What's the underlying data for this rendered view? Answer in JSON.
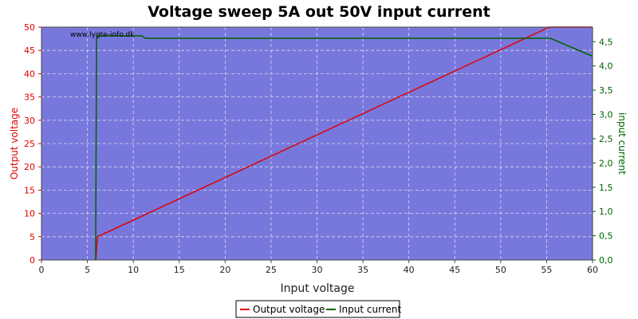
{
  "chart_data": {
    "type": "line",
    "title": "Voltage sweep 5A out 50V input current",
    "watermark": "www.lygte-info.dk",
    "xlabel": "Input voltage",
    "ylabel_left": "Output voltage",
    "ylabel_right": "input current",
    "xlim": [
      0,
      60
    ],
    "ylim_left": [
      0,
      50
    ],
    "ylim_right": [
      0,
      4.8
    ],
    "x_ticks": [
      "0",
      "5",
      "10",
      "15",
      "20",
      "25",
      "30",
      "35",
      "40",
      "45",
      "50",
      "55",
      "60"
    ],
    "y_left_ticks": [
      "0",
      "5",
      "10",
      "15",
      "20",
      "25",
      "30",
      "35",
      "40",
      "45",
      "50"
    ],
    "y_right_ticks": [
      "0,0",
      "0,5",
      "1,0",
      "1,5",
      "2,0",
      "2,5",
      "3,0",
      "3,5",
      "4,0",
      "4,5"
    ],
    "grid": true,
    "legend_position": "bottom-center",
    "plot_background": "#7878dc",
    "series": [
      {
        "name": "Output voltage",
        "axis": "left",
        "color": "#e00000",
        "x": [
          5.9,
          5.95,
          6.0,
          6.1,
          55.3,
          60
        ],
        "y": [
          0,
          0.5,
          2.5,
          5.0,
          50.0,
          50.0
        ]
      },
      {
        "name": "Input current",
        "axis": "right",
        "color": "#006400",
        "x": [
          5.9,
          6.0,
          6.1,
          10.9,
          11.3,
          30,
          35,
          40,
          45,
          50,
          55.4,
          60
        ],
        "y": [
          0,
          4.6,
          4.62,
          4.62,
          4.57,
          4.57,
          4.57,
          4.57,
          4.57,
          4.57,
          4.57,
          4.2
        ]
      }
    ]
  }
}
